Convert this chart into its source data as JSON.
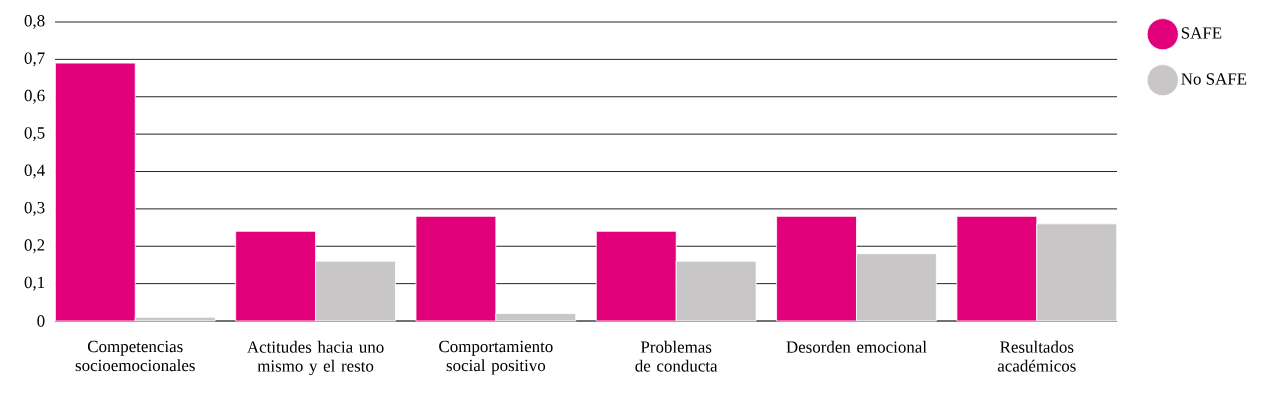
{
  "chart_data": {
    "type": "bar",
    "categories": [
      "Competencias socioemocionales",
      "Actitudes hacia uno mismo y el resto",
      "Comportamiento social positivo",
      "Problemas de conducta",
      "Desorden emocional",
      "Resultados académicos"
    ],
    "series": [
      {
        "name": "SAFE",
        "color": "#e2007a",
        "values": [
          0.69,
          0.24,
          0.28,
          0.24,
          0.28,
          0.28
        ]
      },
      {
        "name": "No SAFE",
        "color": "#c8c6c7",
        "values": [
          0.01,
          0.16,
          0.02,
          0.16,
          0.18,
          0.26
        ]
      }
    ],
    "ylim": [
      0,
      0.8
    ],
    "yticks": [
      {
        "value": 0,
        "label": "0"
      },
      {
        "value": 0.1,
        "label": "0,1"
      },
      {
        "value": 0.2,
        "label": "0,2"
      },
      {
        "value": 0.3,
        "label": "0,3"
      },
      {
        "value": 0.4,
        "label": "0,4"
      },
      {
        "value": 0.5,
        "label": "0,5"
      },
      {
        "value": 0.6,
        "label": "0,6"
      },
      {
        "value": 0.7,
        "label": "0,7"
      },
      {
        "value": 0.8,
        "label": "0,8"
      }
    ],
    "grid": "y",
    "legend": "top right"
  }
}
